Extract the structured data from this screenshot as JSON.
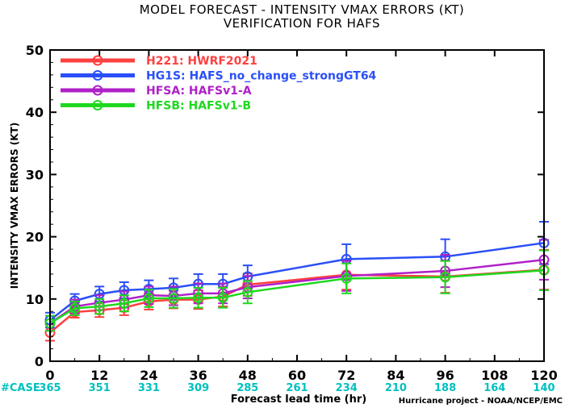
{
  "chart_data": {
    "type": "line",
    "title": [
      "MODEL FORECAST - INTENSITY VMAX ERRORS (KT)",
      "VERIFICATION FOR HAFS"
    ],
    "xlabel": "Forecast lead time (hr)",
    "ylabel": "INTENSITY VMAX ERRORS (KT)",
    "xlim": [
      0,
      120
    ],
    "ylim": [
      0,
      50
    ],
    "xticks": [
      0,
      12,
      24,
      36,
      48,
      60,
      72,
      84,
      96,
      108,
      120
    ],
    "yticks": [
      0,
      10,
      20,
      30,
      40,
      50
    ],
    "case_label": "#CASE",
    "case_color": "#00c0c0",
    "cases": [
      {
        "x": 0,
        "n": "365"
      },
      {
        "x": 12,
        "n": "351"
      },
      {
        "x": 24,
        "n": "331"
      },
      {
        "x": 36,
        "n": "309"
      },
      {
        "x": 48,
        "n": "285"
      },
      {
        "x": 60,
        "n": "261"
      },
      {
        "x": 72,
        "n": "234"
      },
      {
        "x": 84,
        "n": "210"
      },
      {
        "x": 96,
        "n": "188"
      },
      {
        "x": 108,
        "n": "164"
      },
      {
        "x": 120,
        "n": "140"
      }
    ],
    "credit": "Hurricane project - NOAA/NCEP/EMC",
    "grid": false,
    "legend_placement": "top-left",
    "series": [
      {
        "name": "H221: HWRF2021",
        "color": "#ff4040",
        "x": [
          0,
          6,
          12,
          18,
          24,
          30,
          36,
          42,
          48,
          72,
          96,
          120
        ],
        "y": [
          4.6,
          7.9,
          8.2,
          8.6,
          9.6,
          9.9,
          9.9,
          10.4,
          12.3,
          13.9,
          13.6,
          14.7
        ],
        "err": [
          1.3,
          0.9,
          1.1,
          1.2,
          1.3,
          1.4,
          1.5,
          1.6,
          1.8,
          2.4,
          2.6,
          3.2
        ]
      },
      {
        "name": "HG1S: HAFS_no_change_strongGT64",
        "color": "#2a4ff7",
        "x": [
          0,
          6,
          12,
          18,
          24,
          30,
          36,
          42,
          48,
          72,
          96,
          120
        ],
        "y": [
          6.6,
          9.7,
          10.8,
          11.4,
          11.6,
          11.8,
          12.4,
          12.4,
          13.6,
          16.4,
          16.8,
          19.0
        ],
        "err": [
          1.2,
          1.1,
          1.2,
          1.3,
          1.4,
          1.5,
          1.6,
          1.6,
          1.8,
          2.4,
          2.8,
          3.4
        ]
      },
      {
        "name": "HFSA: HAFSv1-A",
        "color": "#b020c8",
        "x": [
          0,
          6,
          12,
          18,
          24,
          30,
          36,
          42,
          48,
          72,
          96,
          120
        ],
        "y": [
          6.1,
          8.8,
          9.4,
          9.9,
          10.6,
          10.5,
          10.9,
          10.9,
          11.9,
          13.7,
          14.5,
          16.3
        ],
        "err": [
          1.2,
          1.1,
          1.2,
          1.3,
          1.4,
          1.5,
          1.6,
          1.6,
          1.8,
          2.4,
          2.6,
          3.2
        ]
      },
      {
        "name": "HFSB: HAFSv1-B",
        "color": "#1ed81e",
        "x": [
          0,
          6,
          12,
          18,
          24,
          30,
          36,
          42,
          48,
          72,
          96,
          120
        ],
        "y": [
          6.1,
          8.5,
          8.8,
          9.3,
          10.1,
          10.1,
          10.2,
          10.2,
          11.1,
          13.3,
          13.5,
          14.6
        ],
        "err": [
          1.2,
          1.1,
          1.2,
          1.3,
          1.4,
          1.5,
          1.6,
          1.6,
          1.8,
          2.4,
          2.6,
          3.2
        ]
      }
    ]
  }
}
